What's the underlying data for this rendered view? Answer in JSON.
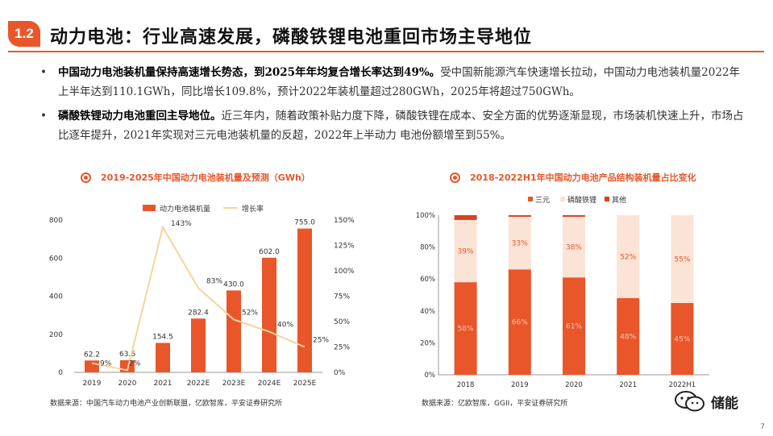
{
  "header": {
    "section_number": "1.2",
    "title": "动力电池：行业高速发展，磷酸铁锂电池重回市场主导地位"
  },
  "bullets": [
    {
      "bold": "中国动力电池装机量保持高速增长势态，到2025年年均复合增长率达到49%。",
      "text": "受中国新能源汽车快速增长拉动，中国动力电池装机量2022年上半年达到110.1GWh，同比增长109.8%，预计2022年装机量超过280GWh，2025年将超过750GWh。"
    },
    {
      "bold": "磷酸铁锂动力电池重回主导地位。",
      "text": "近三年内，随着政策补贴力度下降，磷酸铁锂在成本、安全方面的优势逐渐显现，市场装机快速上升，市场占比逐年提升，2021年实现对三元电池装机量的反超，2022年上半动力 电池份额增至到55%。"
    }
  ],
  "chart_data": [
    {
      "type": "bar",
      "title": "2019-2025年中国动力电池装机量及预测（GWh）",
      "categories": [
        "2019",
        "2020",
        "2021",
        "2022E",
        "2023E",
        "2024E",
        "2025E"
      ],
      "series": [
        {
          "name": "动力电池装机量",
          "type": "bar",
          "values": [
            62.2,
            63.6,
            154.5,
            282.4,
            430.0,
            602.0,
            755.0
          ],
          "labels": [
            "62.2",
            "63.6",
            "154.5",
            "282.4",
            "430.0",
            "602.0",
            "755.0"
          ],
          "color": "#e8562a"
        },
        {
          "name": "增长率",
          "type": "line",
          "axis": "right",
          "values": [
            9,
            2,
            143,
            83,
            52,
            40,
            25
          ],
          "labels": [
            "9%",
            "2%",
            "143%",
            "83%",
            "52%",
            "40%",
            "25%"
          ],
          "color": "#f8d39c"
        }
      ],
      "ylim": [
        0,
        800
      ],
      "yticks": [
        "0",
        "200",
        "400",
        "600",
        "800"
      ],
      "y2lim": [
        0,
        150
      ],
      "y2ticks": [
        "0%",
        "25%",
        "50%",
        "75%",
        "100%",
        "125%",
        "150%"
      ],
      "legend_position": "top",
      "grid": false
    },
    {
      "type": "bar",
      "stacked": true,
      "title": "2018-2022H1年中国动力电池产品结构装机量占比变化",
      "categories": [
        "2018",
        "2019",
        "2020",
        "2021",
        "2022H1"
      ],
      "series": [
        {
          "name": "三元",
          "values": [
            58,
            66,
            61,
            48,
            45
          ],
          "labels": [
            "58%",
            "66%",
            "61%",
            "48%",
            "45%"
          ],
          "color": "#e8562a"
        },
        {
          "name": "磷酸铁锂",
          "values": [
            39,
            33,
            38,
            52,
            55
          ],
          "labels": [
            "39%",
            "33%",
            "38%",
            "52%",
            "55%"
          ],
          "color": "#fbe3d6"
        },
        {
          "name": "其他",
          "values": [
            3,
            1,
            1,
            0,
            0
          ],
          "labels": [
            "",
            "",
            "",
            "",
            ""
          ],
          "color": "#d9431c"
        }
      ],
      "ylim": [
        0,
        100
      ],
      "yticks": [
        "0%",
        "20%",
        "40%",
        "60%",
        "80%",
        "100%"
      ],
      "legend_position": "top",
      "grid": false
    }
  ],
  "sources": {
    "left": "数据来源：中国汽车动力电池产业创新联盟，亿欧智库，平安证券研究所",
    "right": "数据来源：亿欧智库，GGII，平安证券研究所"
  },
  "watermark": {
    "text": "储能",
    "icon": "wechat-icon"
  },
  "page_number": "7",
  "colors": {
    "accent": "#e8562a",
    "light_accent": "#fbe3d6",
    "line": "#f8d39c"
  }
}
